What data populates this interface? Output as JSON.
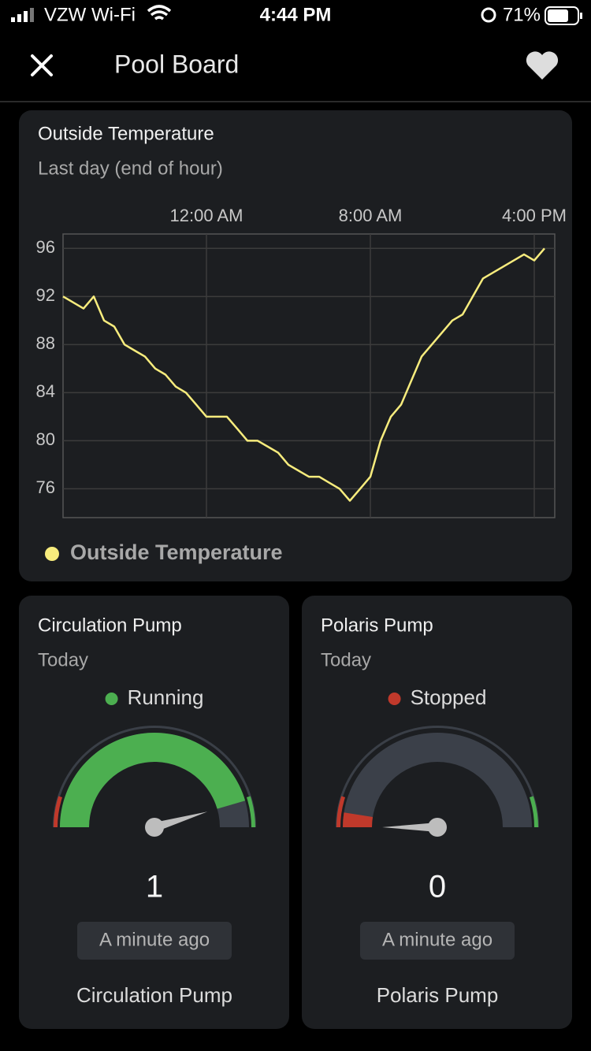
{
  "status_bar": {
    "carrier": "VZW Wi-Fi",
    "time": "4:44 PM",
    "battery": "71%"
  },
  "header": {
    "title": "Pool Board"
  },
  "chart_data": {
    "type": "line",
    "title": "Outside Temperature",
    "subtitle": "Last day (end of hour)",
    "x": [
      -7,
      -6.5,
      -6,
      -5.5,
      -5,
      -4.5,
      -4,
      -3.5,
      -3,
      -2.5,
      -2,
      -1.5,
      -1,
      -0.5,
      0,
      0.5,
      1,
      1.5,
      2,
      2.5,
      3,
      3.5,
      4,
      4.5,
      5,
      5.5,
      6,
      6.5,
      7,
      7.5,
      8,
      8.5,
      9,
      9.5,
      10,
      10.5,
      11,
      11.5,
      12,
      12.5,
      13,
      13.5,
      14,
      14.5,
      15,
      15.5,
      16,
      16.5
    ],
    "series": [
      {
        "name": "Outside Temperature",
        "color": "#f7ec7d",
        "values": [
          92,
          91.5,
          91,
          92,
          90,
          89.5,
          88,
          87.5,
          87,
          86,
          85.5,
          84.5,
          84,
          83,
          82,
          82,
          82,
          81,
          80,
          80,
          79.5,
          79,
          78,
          77.5,
          77,
          77,
          76.5,
          76,
          75,
          76,
          77,
          80,
          82,
          83,
          85,
          87,
          88,
          89,
          90,
          90.5,
          92,
          93.5,
          94,
          94.5,
          95,
          95.5,
          95,
          96
        ]
      }
    ],
    "xlim": [
      -7,
      17
    ],
    "xticks": [
      {
        "value": 0,
        "label": "12:00 AM"
      },
      {
        "value": 8,
        "label": "8:00 AM"
      },
      {
        "value": 16,
        "label": "4:00 PM"
      }
    ],
    "ylim": [
      73.6,
      97.2
    ],
    "yticks": [
      76,
      80,
      84,
      88,
      92,
      96
    ],
    "grid": true,
    "legend": "bottom-left"
  },
  "gauges": [
    {
      "title": "Circulation Pump",
      "period": "Today",
      "status": "Running",
      "status_color": "#4caf50",
      "value": 1,
      "range": [
        0,
        1.1
      ],
      "color": "#4caf50",
      "updated": "A minute ago",
      "name": "Circulation Pump"
    },
    {
      "title": "Polaris Pump",
      "period": "Today",
      "status": "Stopped",
      "status_color": "#c0392b",
      "value": 0,
      "range": [
        0,
        1.1
      ],
      "color": "#c0392b",
      "updated": "A minute ago",
      "name": "Polaris Pump"
    }
  ]
}
